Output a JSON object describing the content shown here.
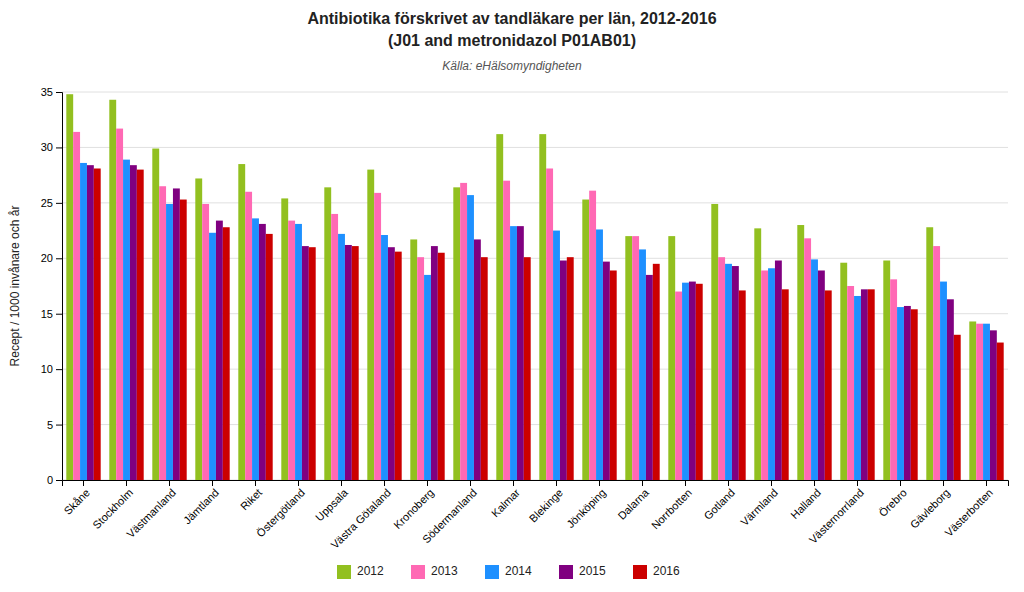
{
  "chart_data": {
    "type": "bar",
    "title": [
      "Antibiotika förskrivet av tandläkare per län, 2012-2016",
      "(J01 and metronidazol P01AB01)"
    ],
    "subtitle": "Källa: eHälsomyndigheten",
    "ylabel": "Recept / 1000 invånare och år",
    "categories": [
      "Skåne",
      "Stockholm",
      "Västmanland",
      "Jämtland",
      "Riket",
      "Östergötland",
      "Uppsala",
      "Västra Götaland",
      "Kronoberg",
      "Södermanland",
      "Kalmar",
      "Blekinge",
      "Jönköping",
      "Dalarna",
      "Norrbotten",
      "Gotland",
      "Värmland",
      "Halland",
      "Västernorrland",
      "Örebro",
      "Gävleborg",
      "Västerbotten"
    ],
    "series": [
      {
        "name": "2012",
        "color": "#92C020",
        "values": [
          34.8,
          34.3,
          29.9,
          27.2,
          28.5,
          25.4,
          26.4,
          28.0,
          21.7,
          26.4,
          31.2,
          31.2,
          25.3,
          22.0,
          22.0,
          24.9,
          22.7,
          23.0,
          19.6,
          19.8,
          22.8,
          14.3
        ]
      },
      {
        "name": "2013",
        "color": "#FF69B4",
        "values": [
          31.4,
          31.7,
          26.5,
          24.9,
          26.0,
          23.4,
          24.0,
          25.9,
          20.1,
          26.8,
          27.0,
          28.1,
          26.1,
          22.0,
          17.0,
          20.1,
          18.9,
          21.8,
          17.5,
          18.1,
          21.1,
          14.1
        ]
      },
      {
        "name": "2014",
        "color": "#1E90FF",
        "values": [
          28.6,
          28.9,
          24.9,
          22.3,
          23.6,
          23.1,
          22.2,
          22.1,
          18.5,
          25.7,
          22.9,
          22.5,
          22.6,
          20.8,
          17.8,
          19.5,
          19.1,
          19.9,
          16.6,
          15.6,
          17.9,
          14.1
        ]
      },
      {
        "name": "2015",
        "color": "#800080",
        "values": [
          28.4,
          28.4,
          26.3,
          23.4,
          23.1,
          21.1,
          21.2,
          21.0,
          21.1,
          21.7,
          22.9,
          19.8,
          19.7,
          18.5,
          17.9,
          19.3,
          19.8,
          18.9,
          17.2,
          15.7,
          16.3,
          13.5
        ]
      },
      {
        "name": "2016",
        "color": "#CC0000",
        "values": [
          28.1,
          28.0,
          25.3,
          22.8,
          22.2,
          21.0,
          21.1,
          20.6,
          20.5,
          20.1,
          20.1,
          20.1,
          18.9,
          19.5,
          17.7,
          17.1,
          17.2,
          17.1,
          17.2,
          15.4,
          13.1,
          12.4
        ]
      }
    ],
    "ylim": [
      0,
      35
    ],
    "yticks": [
      0,
      5,
      10,
      15,
      20,
      25,
      30,
      35
    ],
    "grid": true,
    "legend": "bottom"
  }
}
